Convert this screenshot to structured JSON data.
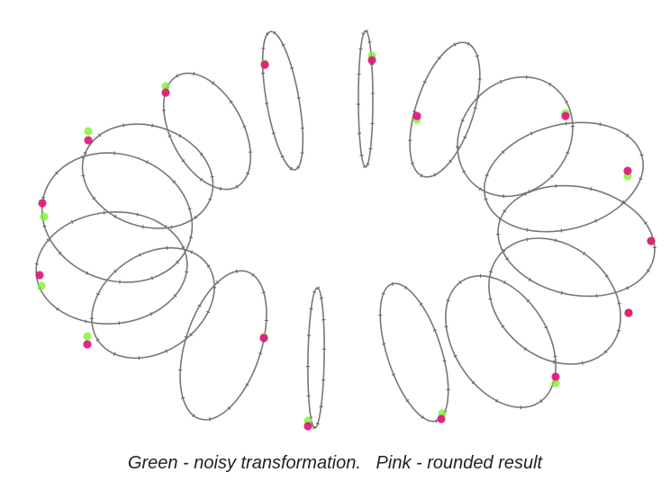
{
  "caption": "Green - noisy transformation.   Pink - rounded result",
  "colors": {
    "noisy": "#7ff03a",
    "rounded": "#e0167a",
    "ring": "#777777"
  },
  "legend": [
    {
      "label": "Green - noisy transformation.",
      "color": "#7ff03a"
    },
    {
      "label": "Pink - rounded result",
      "color": "#e0167a"
    }
  ]
}
